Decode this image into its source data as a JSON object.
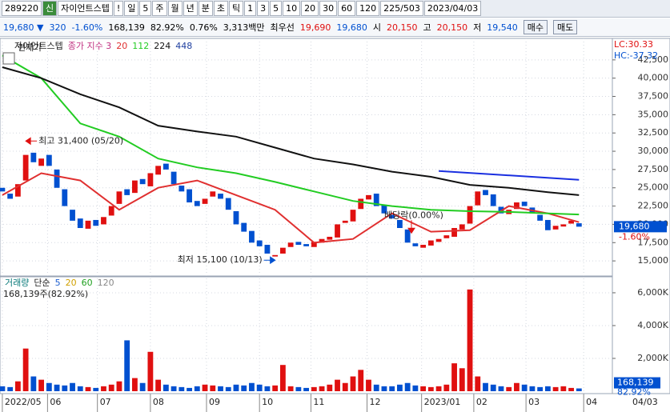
{
  "toolbar": {
    "items": [
      "289220",
      "신",
      "자이언트스텝",
      "!",
      "일",
      "5",
      "주",
      "월",
      "년",
      "분",
      "초",
      "틱",
      "1",
      "3",
      "5",
      "10",
      "20",
      "30",
      "60",
      "120",
      "225/503",
      "2023/04/03"
    ]
  },
  "info_bar": {
    "items": [
      "19,680 ▼",
      "320",
      "-1.60%",
      "168,139",
      "82.92%",
      "0.76%",
      "3,313백만",
      "최우선",
      "19,690",
      "19,680",
      "시",
      "20,150",
      "고",
      "20,150",
      "저",
      "19,540",
      "매수",
      "매도"
    ]
  },
  "chart_data": [
    {
      "type": "candlestick",
      "title": "자이언트스텝",
      "overlay_label": "현재가",
      "legend_label": "종가 지수 3",
      "xlim": [
        -0.3,
        75.2
      ],
      "ylim": [
        13700,
        45000
      ],
      "yticks": [
        {
          "value": 15000,
          "label": "15,000"
        },
        {
          "value": 17500,
          "label": "17,500"
        },
        {
          "value": 20000,
          "label": "20,000"
        },
        {
          "value": 22500,
          "label": "22,500"
        },
        {
          "value": 25000,
          "label": "25,000"
        },
        {
          "value": 27500,
          "label": "27,500"
        },
        {
          "value": 30000,
          "label": "30,000"
        },
        {
          "value": 32500,
          "label": "32,500"
        },
        {
          "value": 35000,
          "label": "35,000"
        },
        {
          "value": 37500,
          "label": "37,500"
        },
        {
          "value": 40000,
          "label": "40,000"
        },
        {
          "value": 42500,
          "label": "42,500"
        }
      ],
      "xticks": [
        {
          "value": 0,
          "label": "2022/05"
        },
        {
          "value": 5.8,
          "label": "06"
        },
        {
          "value": 12.2,
          "label": "07"
        },
        {
          "value": 19,
          "label": "08"
        },
        {
          "value": 26.2,
          "label": "09"
        },
        {
          "value": 33,
          "label": "10"
        },
        {
          "value": 39.6,
          "label": "11"
        },
        {
          "value": 46.8,
          "label": "12"
        },
        {
          "value": 53.8,
          "label": "2023/01"
        },
        {
          "value": 60.5,
          "label": "02"
        },
        {
          "value": 67.2,
          "label": "03"
        },
        {
          "value": 74.6,
          "label": "04"
        }
      ],
      "end_date": "04/03",
      "up_color": "#e01010",
      "down_color": "#0050d0",
      "open": [
        25000,
        24200,
        23800,
        26000,
        29800,
        28000,
        29500,
        27500,
        24800,
        22000,
        20800,
        19400,
        20600,
        20000,
        21200,
        22800,
        24800,
        24300,
        26200,
        25200,
        26800,
        28300,
        27200,
        25300,
        24800,
        23200,
        22800,
        23800,
        24200,
        23600,
        21800,
        20200,
        19100,
        17800,
        17200,
        15600,
        16000,
        16900,
        17600,
        17300,
        16900,
        17500,
        17900,
        18200,
        20200,
        20400,
        22100,
        23400,
        24200,
        22600,
        21300,
        20600,
        19300,
        17400,
        16800,
        17100,
        17600,
        18100,
        18300,
        19300,
        20100,
        22600,
        24700,
        24100,
        22400,
        21400,
        22100,
        23100,
        22300,
        21300,
        20600,
        19300,
        19700,
        20100,
        20150
      ],
      "close": [
        24500,
        23500,
        25500,
        29500,
        28500,
        29000,
        28000,
        25000,
        22500,
        20500,
        19500,
        20500,
        19800,
        21000,
        22500,
        24500,
        24000,
        26000,
        25500,
        27000,
        28000,
        27500,
        25500,
        24500,
        23000,
        22500,
        23500,
        24500,
        23500,
        22000,
        20000,
        19000,
        17500,
        17000,
        16000,
        15800,
        16800,
        17500,
        17200,
        17000,
        17600,
        18000,
        18300,
        20000,
        20500,
        22000,
        23500,
        24000,
        22500,
        21500,
        20800,
        19500,
        17500,
        17000,
        17200,
        17800,
        18000,
        18500,
        19500,
        20000,
        22500,
        24500,
        24000,
        22500,
        21500,
        22000,
        23000,
        22500,
        21500,
        20500,
        19200,
        19800,
        20000,
        20500,
        19680
      ],
      "series": [
        {
          "name": "20",
          "color": "#e03030",
          "x": [
            0,
            5,
            10,
            15,
            20,
            25,
            30,
            35,
            40,
            45,
            50,
            55,
            60,
            65,
            70,
            74
          ],
          "values": [
            24000,
            27000,
            26000,
            22000,
            25000,
            26000,
            24000,
            22000,
            17500,
            18000,
            21500,
            19000,
            19200,
            22500,
            21500,
            20300
          ]
        },
        {
          "name": "112",
          "color": "#22cc22",
          "x": [
            0,
            5,
            10,
            15,
            20,
            25,
            30,
            35,
            40,
            45,
            50,
            55,
            60,
            65,
            70,
            74
          ],
          "values": [
            43100,
            40000,
            33800,
            32000,
            29000,
            27800,
            27000,
            25800,
            24500,
            23200,
            22500,
            22000,
            21800,
            21700,
            21500,
            21350
          ]
        },
        {
          "name": "224",
          "color": "#111111",
          "x": [
            0,
            5,
            10,
            15,
            20,
            25,
            30,
            35,
            40,
            45,
            50,
            55,
            60,
            65,
            70,
            74
          ],
          "values": [
            41500,
            40000,
            37800,
            36000,
            33500,
            32700,
            32000,
            30500,
            29000,
            28200,
            27200,
            26500,
            25400,
            25000,
            24400,
            24000
          ]
        },
        {
          "name": "448",
          "color": "#2040a0",
          "x": [
            0,
            5,
            10,
            15,
            20,
            25,
            30,
            35,
            40,
            45,
            50,
            55,
            60,
            65,
            70,
            74
          ],
          "values": [
            null,
            null,
            null,
            null,
            null,
            null,
            null,
            null,
            null,
            null,
            null,
            null,
            null,
            null,
            null,
            null
          ]
        }
      ],
      "trend_line": {
        "color": "#1a2fe0",
        "x": [
          56,
          74
        ],
        "values": [
          27300,
          26100
        ]
      },
      "annotations": [
        {
          "text": "최고 31,400 (05/20)",
          "x": 3,
          "value": 31400,
          "color": "#e01010"
        },
        {
          "text": "최저 15,100 (10/13)",
          "x": 35,
          "value": 15100,
          "color": "#0050d0"
        },
        {
          "text": "배당락(0.00%)",
          "x": 52.5,
          "value": 21000,
          "color": "#e01010"
        }
      ],
      "corner_labels": [
        "LC:30.33",
        "HC:-37.32"
      ],
      "last_price": {
        "value": 19680,
        "label": "19,680",
        "change": "-1.60%"
      }
    },
    {
      "type": "volume",
      "title": "거래량",
      "legend_label": "단순",
      "summary": "168,139주(82.92%)",
      "xlim": [
        -0.3,
        75.2
      ],
      "ylim": [
        0,
        6700
      ],
      "yticks": [
        {
          "value": 2000,
          "label": "2,000K"
        },
        {
          "value": 4000,
          "label": "4,000K"
        },
        {
          "value": 6000,
          "label": "6,000K"
        }
      ],
      "values": [
        300,
        250,
        600,
        2600,
        900,
        700,
        500,
        400,
        350,
        500,
        300,
        250,
        200,
        300,
        400,
        600,
        3100,
        800,
        500,
        2400,
        700,
        400,
        300,
        250,
        200,
        300,
        400,
        350,
        300,
        250,
        400,
        350,
        500,
        400,
        300,
        350,
        1600,
        300,
        250,
        200,
        250,
        300,
        400,
        700,
        500,
        900,
        1300,
        700,
        400,
        300,
        300,
        400,
        500,
        350,
        300,
        250,
        300,
        400,
        1700,
        1400,
        6200,
        900,
        500,
        400,
        300,
        250,
        500,
        400,
        300,
        250,
        300,
        250,
        300,
        200,
        168.139
      ],
      "ma_legend": [
        {
          "name": "5",
          "color": "#2060d0"
        },
        {
          "name": "20",
          "color": "#d0a000"
        },
        {
          "name": "60",
          "color": "#20a020"
        },
        {
          "name": "120",
          "color": "#888888"
        }
      ],
      "last_volume": {
        "value": 168.139,
        "label": "168,139",
        "ratio": "82.92%"
      }
    }
  ]
}
